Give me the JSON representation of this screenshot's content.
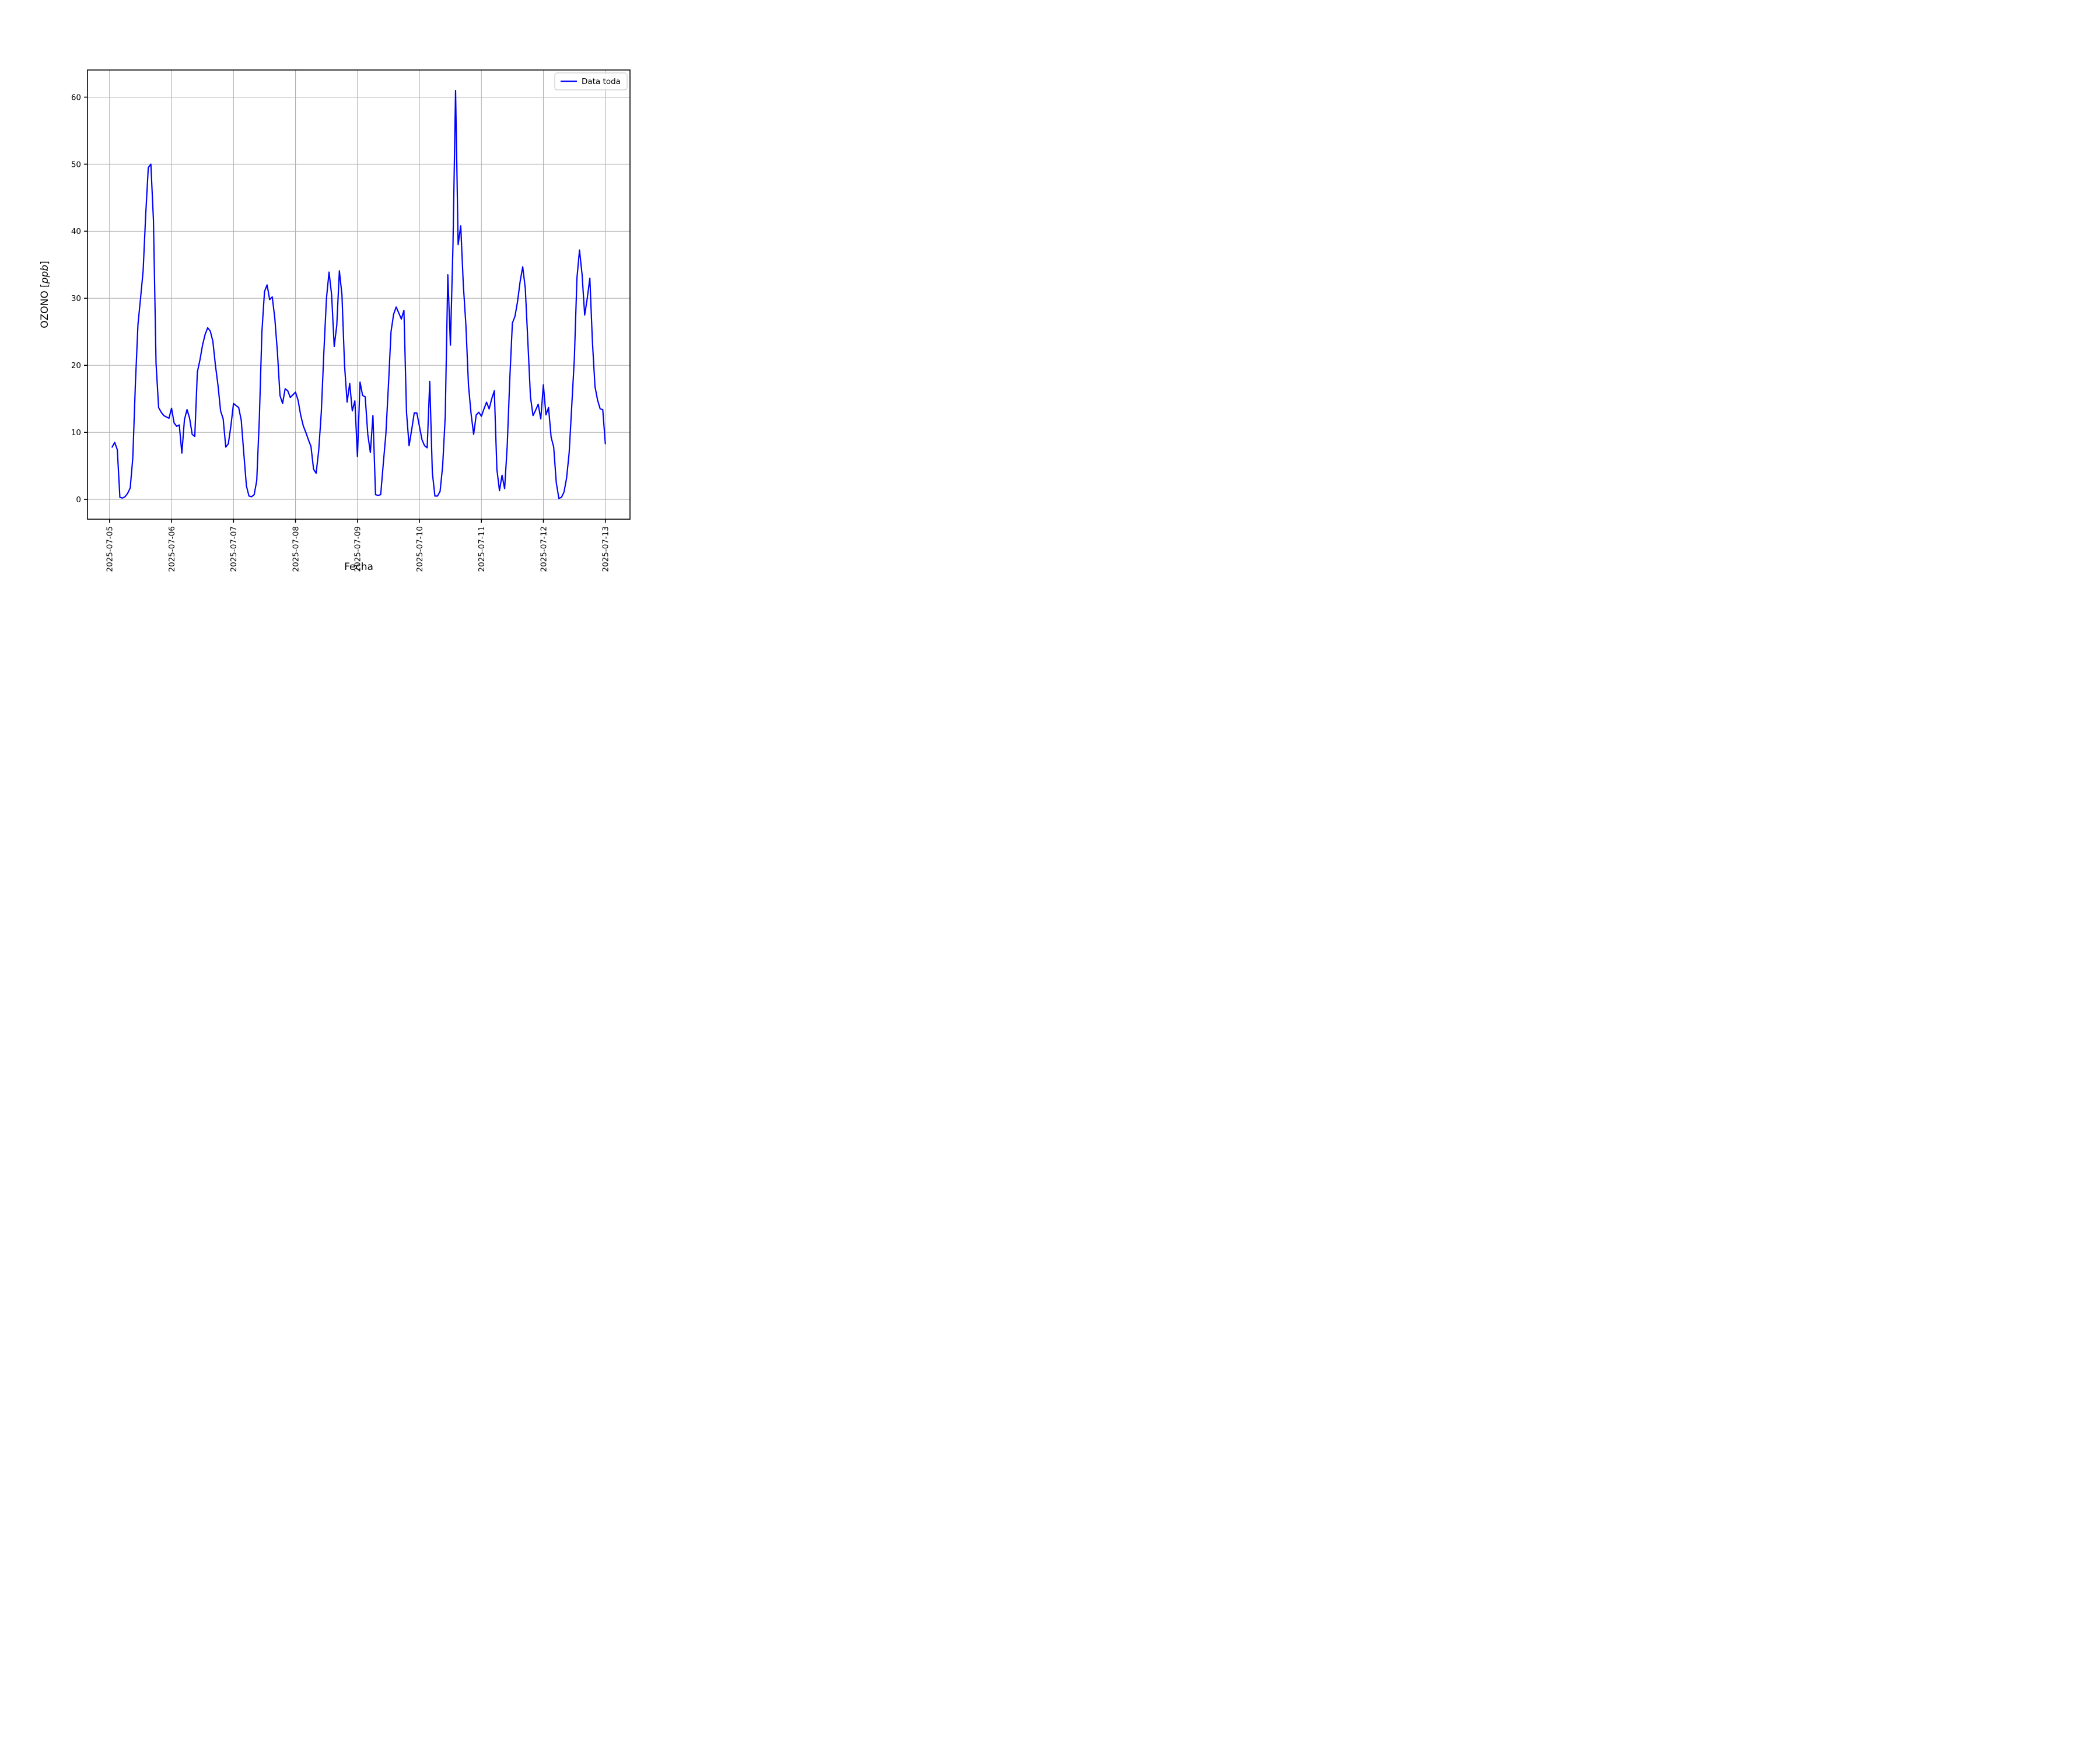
{
  "chart_data": {
    "type": "line",
    "title": "",
    "xlabel": "Fecha",
    "ylabel": {
      "prefix": "OZONO [",
      "italic": "ppb",
      "suffix": "]"
    },
    "legend": {
      "position": "upper-right",
      "entries": [
        {
          "label": "Data toda",
          "color": "#0000ff"
        }
      ]
    },
    "grid": true,
    "grid_color": "#b0b0b0",
    "line_color": "#0000ff",
    "x_tick_labels": [
      "2025-07-05",
      "2025-07-06",
      "2025-07-07",
      "2025-07-08",
      "2025-07-09",
      "2025-07-10",
      "2025-07-11",
      "2025-07-12",
      "2025-07-13"
    ],
    "y_ticks": [
      0,
      10,
      20,
      30,
      40,
      50,
      60
    ],
    "xlim_days": [
      -0.356,
      8.398
    ],
    "ylim": [
      -2.95,
      64.05
    ],
    "series": [
      {
        "name": "Data toda",
        "start": "2025-07-05 01:00",
        "step_hours": 1,
        "units": "ppb",
        "values": [
          7.8,
          8.5,
          7.4,
          0.3,
          0.2,
          0.4,
          0.9,
          1.7,
          6.2,
          17.2,
          26.1,
          30.0,
          34.1,
          42.5,
          49.5,
          50.0,
          41.6,
          20.3,
          13.7,
          13.0,
          12.5,
          12.3,
          12.1,
          13.6,
          11.4,
          10.9,
          11.1,
          6.9,
          11.9,
          13.4,
          12.1,
          9.7,
          9.4,
          19.0,
          20.8,
          23.0,
          24.6,
          25.6,
          25.1,
          23.6,
          20.0,
          17.0,
          13.2,
          12.0,
          7.8,
          8.3,
          11.0,
          14.3,
          14.0,
          13.7,
          11.8,
          6.8,
          2.0,
          0.5,
          0.4,
          0.7,
          2.8,
          12.0,
          25.0,
          31.0,
          32.0,
          29.8,
          30.2,
          27.0,
          22.0,
          15.5,
          14.3,
          16.5,
          16.2,
          15.2,
          15.6,
          16.0,
          14.8,
          12.6,
          11.0,
          10.0,
          8.9,
          7.9,
          4.5,
          3.9,
          7.3,
          13.0,
          22.0,
          30.0,
          33.9,
          30.5,
          22.8,
          26.0,
          34.1,
          30.5,
          20.0,
          14.5,
          17.3,
          13.2,
          14.7,
          6.4,
          17.5,
          15.5,
          15.3,
          9.7,
          7.0,
          12.5,
          0.7,
          0.6,
          0.7,
          5.3,
          9.7,
          17.0,
          25.0,
          27.6,
          28.7,
          27.8,
          26.9,
          28.2,
          13.0,
          8.0,
          10.4,
          12.9,
          12.9,
          10.9,
          8.9,
          8.0,
          7.7,
          17.6,
          4.0,
          0.5,
          0.5,
          1.2,
          5.0,
          12.4,
          33.5,
          23.0,
          38.0,
          61.0,
          38.0,
          40.8,
          32.0,
          26.0,
          17.0,
          12.8,
          9.7,
          12.6,
          13.0,
          12.4,
          13.5,
          14.5,
          13.5,
          15.0,
          16.2,
          4.5,
          1.3,
          3.6,
          1.6,
          8.0,
          18.0,
          26.3,
          27.3,
          29.5,
          32.5,
          34.7,
          31.5,
          23.5,
          15.3,
          12.5,
          13.3,
          14.2,
          12.0,
          17.1,
          12.6,
          13.7,
          9.3,
          7.8,
          2.5,
          0.15,
          0.3,
          1.1,
          3.2,
          7.0,
          14.0,
          21.0,
          33.0,
          37.2,
          33.5,
          27.5,
          30.0,
          33.0,
          23.5,
          16.8,
          14.8,
          13.5,
          13.4,
          8.3
        ]
      }
    ]
  }
}
